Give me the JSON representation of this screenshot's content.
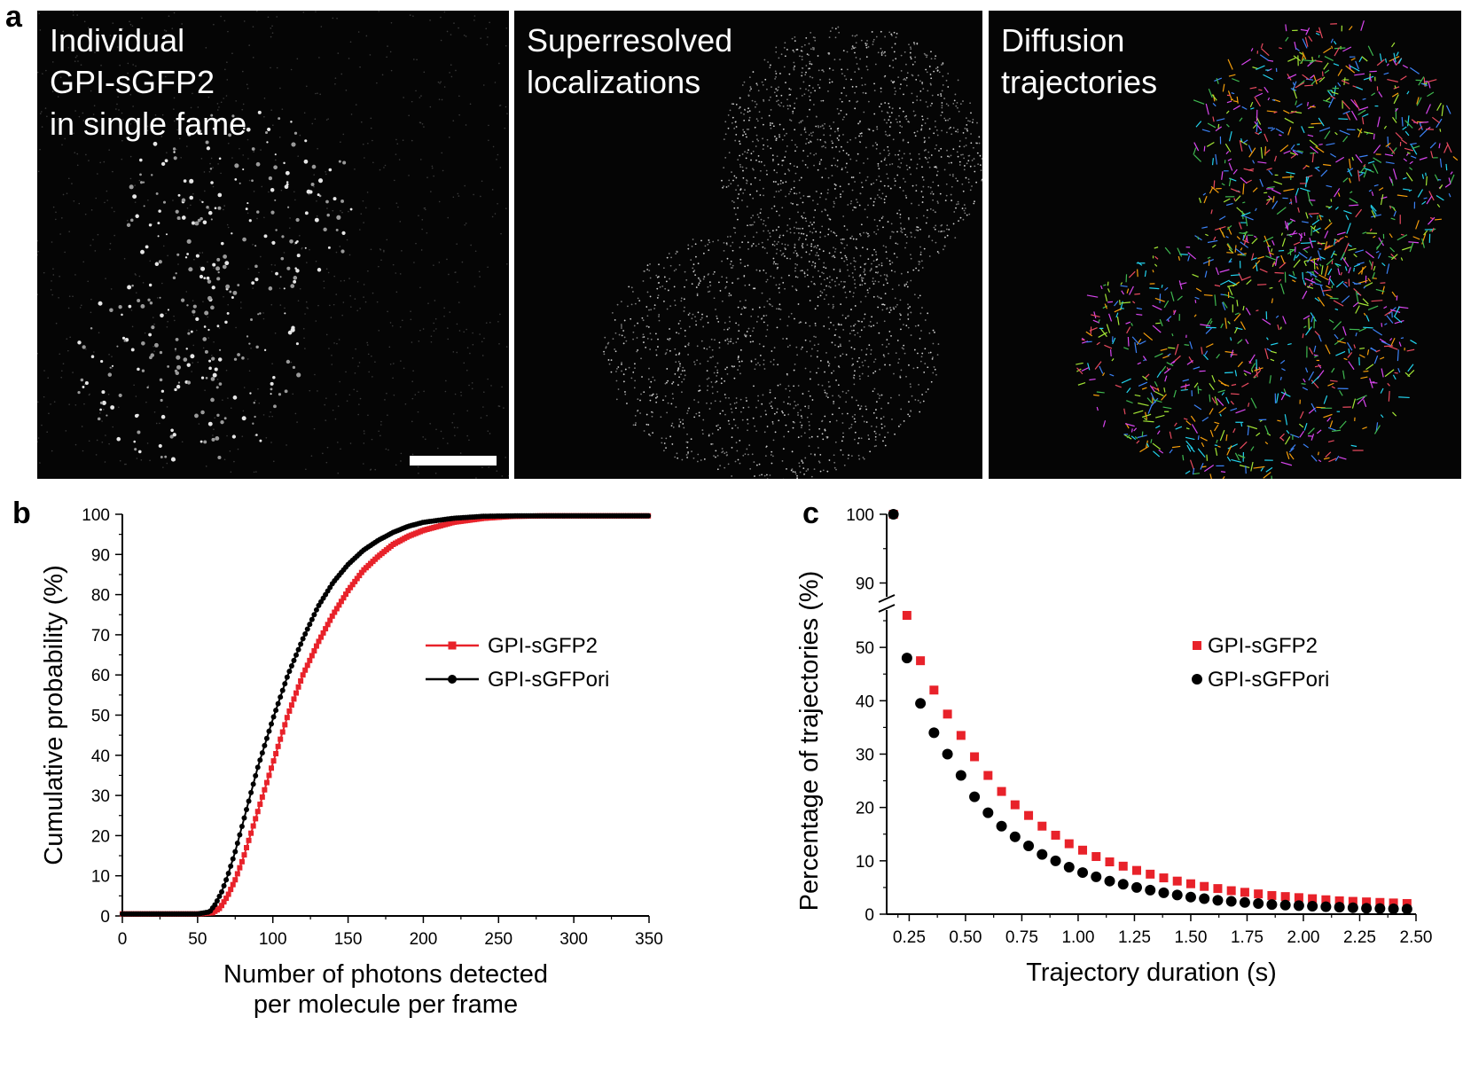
{
  "panels": {
    "a": {
      "letter": "a",
      "images": [
        {
          "title": "Individual\nGPI-sGFP2\nin single fame"
        },
        {
          "title": "Superresolved\nlocalizations"
        },
        {
          "title": "Diffusion\ntrajectories"
        }
      ]
    },
    "b": {
      "letter": "b"
    },
    "c": {
      "letter": "c"
    }
  },
  "colors": {
    "red": "#e8222a",
    "black": "#000000",
    "image_bg": "#050505"
  },
  "chart_data": [
    {
      "panel": "b",
      "type": "line",
      "title": "",
      "xlabel": "Number of photons detected\nper molecule per frame",
      "ylabel": "Cumulative probability (%)",
      "xlim": [
        0,
        350
      ],
      "ylim": [
        0,
        100
      ],
      "xticks": [
        0,
        50,
        100,
        150,
        200,
        250,
        300,
        350
      ],
      "yticks": [
        0,
        10,
        20,
        30,
        40,
        50,
        60,
        70,
        80,
        90,
        100
      ],
      "legend_position": "right",
      "series": [
        {
          "name": "GPI-sGFP2",
          "color": "#e8222a",
          "marker": "square",
          "x": [
            0,
            50,
            60,
            65,
            70,
            75,
            80,
            85,
            90,
            100,
            110,
            120,
            130,
            140,
            150,
            160,
            170,
            180,
            190,
            200,
            220,
            240,
            260,
            280,
            300,
            350
          ],
          "y": [
            0.5,
            0.5,
            0.8,
            2,
            5,
            9,
            14,
            20,
            26,
            38,
            50,
            60,
            68,
            75,
            81,
            86,
            89.5,
            92.5,
            94.5,
            96,
            98,
            99,
            99.5,
            99.6,
            99.6,
            99.6
          ]
        },
        {
          "name": "GPI-sGFPori",
          "color": "#000000",
          "marker": "circle",
          "x": [
            0,
            50,
            58,
            62,
            66,
            70,
            75,
            80,
            85,
            90,
            100,
            110,
            120,
            130,
            140,
            150,
            160,
            170,
            180,
            190,
            200,
            220,
            240,
            260,
            300,
            350
          ],
          "y": [
            0.5,
            0.5,
            1,
            3,
            6,
            10,
            16,
            23,
            30,
            37,
            49,
            60,
            69,
            77,
            83,
            87.5,
            91,
            93.5,
            95.5,
            97,
            98,
            99,
            99.5,
            99.6,
            99.6,
            99.6
          ]
        }
      ]
    },
    {
      "panel": "c",
      "type": "scatter",
      "title": "",
      "xlabel": "Trajectory duration (s)",
      "ylabel": "Percentage of trajectories (%)",
      "xlim": [
        0.15,
        2.5
      ],
      "y_axis_break": {
        "lower": [
          0,
          57
        ],
        "upper": [
          88,
          100
        ]
      },
      "xticks": [
        0.25,
        0.5,
        0.75,
        1.0,
        1.25,
        1.5,
        1.75,
        2.0,
        2.25,
        2.5
      ],
      "xtick_labels": [
        "0.25",
        "0.50",
        "0.75",
        "1.00",
        "1.25",
        "1.50",
        "1.75",
        "2.00",
        "2.25",
        "2.50"
      ],
      "yticks_lower": [
        0,
        10,
        20,
        30,
        40,
        50
      ],
      "yticks_upper": [
        90,
        100
      ],
      "legend_position": "right",
      "series": [
        {
          "name": "GPI-sGFP2",
          "color": "#e8222a",
          "marker": "square",
          "x": [
            0.18,
            0.24,
            0.3,
            0.36,
            0.42,
            0.48,
            0.54,
            0.6,
            0.66,
            0.72,
            0.78,
            0.84,
            0.9,
            0.96,
            1.02,
            1.08,
            1.14,
            1.2,
            1.26,
            1.32,
            1.38,
            1.44,
            1.5,
            1.56,
            1.62,
            1.68,
            1.74,
            1.8,
            1.86,
            1.92,
            1.98,
            2.04,
            2.1,
            2.16,
            2.22,
            2.28,
            2.34,
            2.4,
            2.46
          ],
          "y": [
            100,
            56,
            47.5,
            42,
            37.5,
            33.5,
            29.5,
            26,
            23,
            20.5,
            18.5,
            16.5,
            14.8,
            13.2,
            12,
            10.8,
            9.8,
            9,
            8.2,
            7.5,
            6.8,
            6.2,
            5.7,
            5.2,
            4.8,
            4.4,
            4.1,
            3.8,
            3.5,
            3.3,
            3.1,
            2.9,
            2.7,
            2.5,
            2.4,
            2.3,
            2.2,
            2.1,
            2.0
          ]
        },
        {
          "name": "GPI-sGFPori",
          "color": "#000000",
          "marker": "circle",
          "x": [
            0.18,
            0.24,
            0.3,
            0.36,
            0.42,
            0.48,
            0.54,
            0.6,
            0.66,
            0.72,
            0.78,
            0.84,
            0.9,
            0.96,
            1.02,
            1.08,
            1.14,
            1.2,
            1.26,
            1.32,
            1.38,
            1.44,
            1.5,
            1.56,
            1.62,
            1.68,
            1.74,
            1.8,
            1.86,
            1.92,
            1.98,
            2.04,
            2.1,
            2.16,
            2.22,
            2.28,
            2.34,
            2.4,
            2.46
          ],
          "y": [
            100,
            48,
            39.5,
            34,
            30,
            26,
            22,
            19,
            16.5,
            14.5,
            12.8,
            11.2,
            10,
            8.8,
            7.8,
            7,
            6.2,
            5.6,
            5,
            4.5,
            4,
            3.6,
            3.2,
            2.9,
            2.6,
            2.4,
            2.2,
            2.0,
            1.8,
            1.7,
            1.6,
            1.5,
            1.4,
            1.3,
            1.2,
            1.1,
            1.05,
            1.0,
            0.95
          ]
        }
      ]
    }
  ]
}
